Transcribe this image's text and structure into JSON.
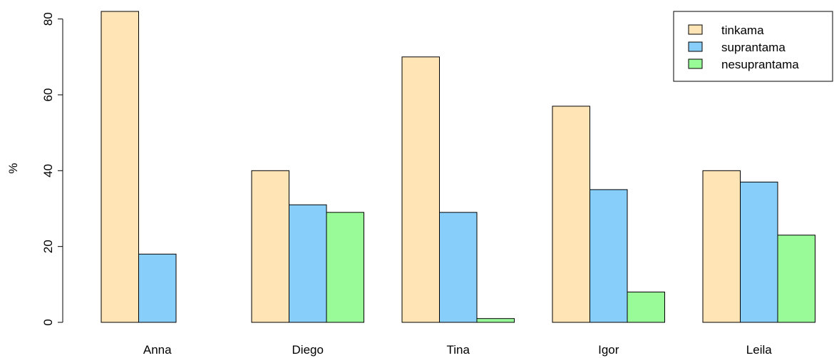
{
  "chart_data": {
    "type": "bar",
    "title": "",
    "xlabel": "",
    "ylabel": "%",
    "ylim": [
      0,
      82
    ],
    "yticks": [
      0,
      20,
      40,
      60,
      80
    ],
    "categories": [
      "Anna",
      "Diego",
      "Tina",
      "Igor",
      "Leila"
    ],
    "series": [
      {
        "name": "tinkama",
        "color": "#FFE4B5",
        "values": [
          82,
          40,
          70,
          57,
          40
        ]
      },
      {
        "name": "suprantama",
        "color": "#87CEFA",
        "values": [
          18,
          31,
          29,
          35,
          37
        ]
      },
      {
        "name": "nesuprantama",
        "color": "#98FB98",
        "values": [
          0,
          29,
          1,
          8,
          23
        ]
      }
    ],
    "legend_position": "top-right",
    "grid": false
  }
}
